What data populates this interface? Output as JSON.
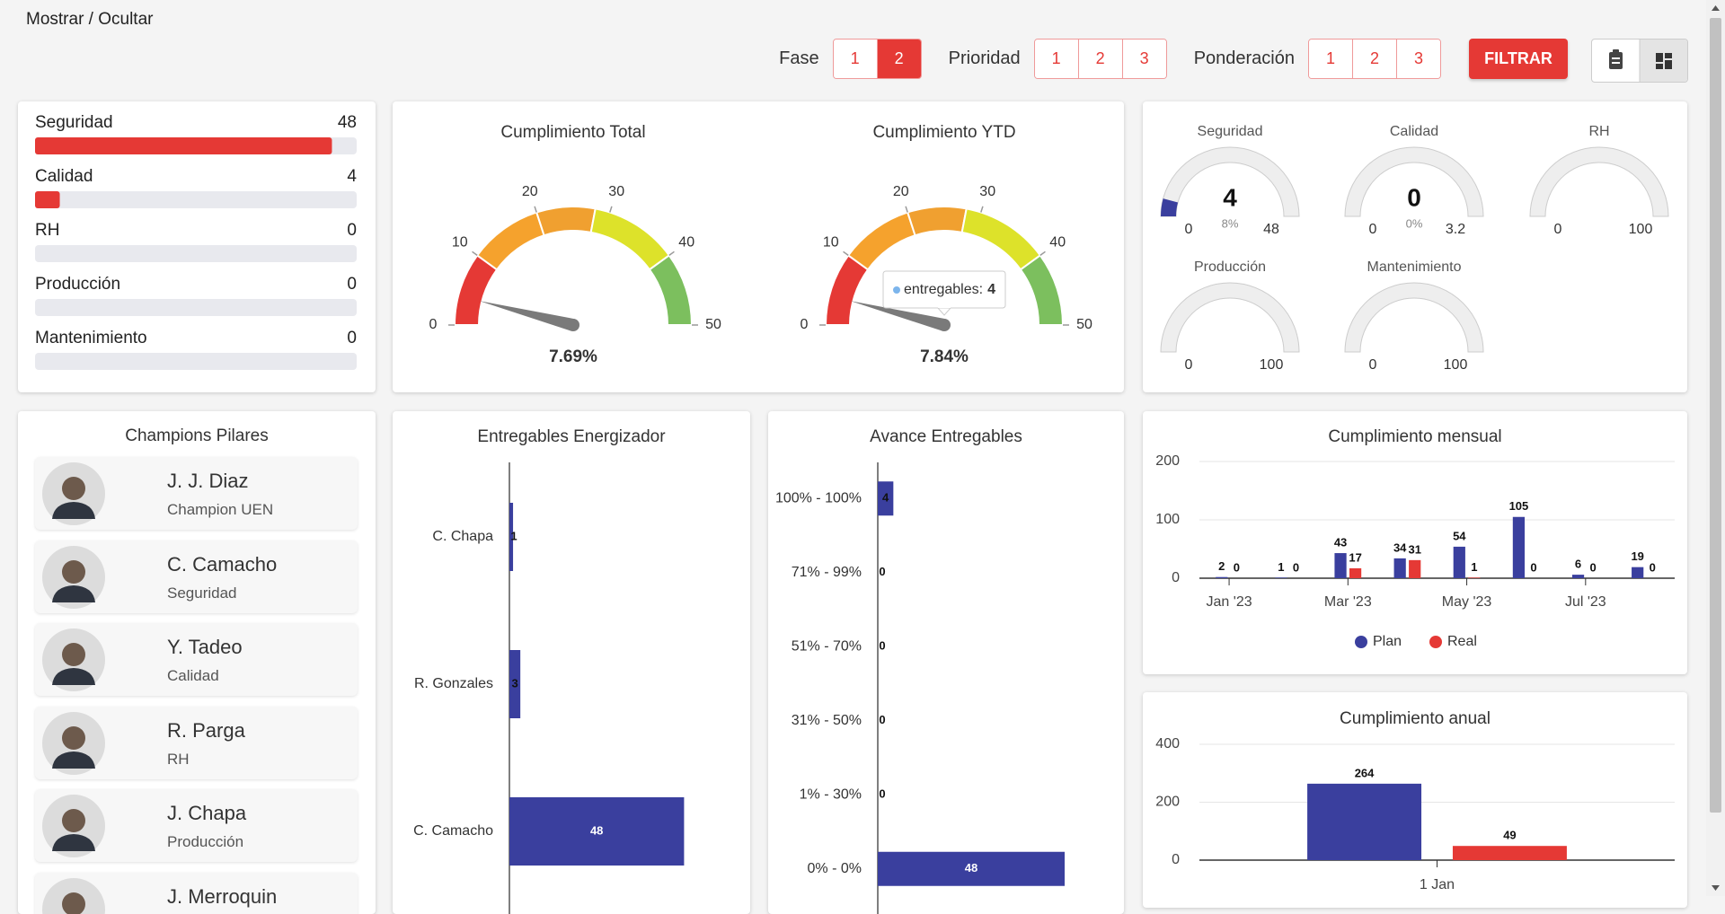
{
  "header": {
    "toggle": "Mostrar / Ocultar"
  },
  "filters": [
    {
      "label": "Fase",
      "options": [
        1,
        2
      ],
      "selected": 2
    },
    {
      "label": "Prioridad",
      "options": [
        1,
        2,
        3
      ]
    },
    {
      "label": "Ponderación",
      "options": [
        1,
        2,
        3
      ]
    }
  ],
  "filter_button": "FILTRAR",
  "champions": {
    "title": "Champions Pilares",
    "people": [
      {
        "name": "J. J. Diaz",
        "role": "Champion UEN"
      },
      {
        "name": "C. Camacho",
        "role": "Seguridad"
      },
      {
        "name": "Y. Tadeo",
        "role": "Calidad"
      },
      {
        "name": "R. Parga",
        "role": "RH"
      },
      {
        "name": "J. Chapa",
        "role": "Producción"
      },
      {
        "name": "J. Merroquin"
      }
    ]
  },
  "chart_data": [
    {
      "type": "progress",
      "categories": [
        "Seguridad",
        "Calidad",
        "RH",
        "Producción",
        "Mantenimiento"
      ],
      "values": [
        48,
        4,
        0,
        0,
        0
      ],
      "xlim": [
        0,
        52
      ],
      "color": "#e53935",
      "track_color": "#e8e9ee"
    },
    {
      "type": "gauge",
      "title": "Cumplimiento Total",
      "value": 4,
      "caption": "7.69%",
      "ylim": [
        0,
        50
      ],
      "yticks": [
        0,
        10,
        20,
        30,
        40,
        50
      ],
      "needle_color": "#7a7a7a",
      "bands": [
        {
          "from": 0,
          "to": 10,
          "color": "#e53935"
        },
        {
          "from": 10,
          "to": 20,
          "color": "#f5a22d"
        },
        {
          "from": 20,
          "to": 28,
          "color": "#f0a030"
        },
        {
          "from": 28,
          "to": 40,
          "color": "#dde22a"
        },
        {
          "from": 40,
          "to": 50,
          "color": "#7cbf5e"
        }
      ]
    },
    {
      "type": "gauge",
      "title": "Cumplimiento YTD",
      "value": 4,
      "caption": "7.84%",
      "ylim": [
        0,
        50
      ],
      "yticks": [
        0,
        10,
        20,
        30,
        40,
        50
      ],
      "needle_color": "#7a7a7a",
      "tooltip": "entregables:",
      "bands": [
        {
          "from": 0,
          "to": 10,
          "color": "#e53935"
        },
        {
          "from": 10,
          "to": 20,
          "color": "#f5a22d"
        },
        {
          "from": 20,
          "to": 28,
          "color": "#f0a030"
        },
        {
          "from": 28,
          "to": 40,
          "color": "#dde22a"
        },
        {
          "from": 40,
          "to": 50,
          "color": "#7cbf5e"
        }
      ]
    },
    {
      "type": "solidgauge",
      "color": "#3a3f9e",
      "track_color": "#eeeeee",
      "gauges": [
        {
          "title": "Seguridad",
          "value": 4,
          "caption": "8%",
          "ylim": [
            0,
            48
          ]
        },
        {
          "title": "Calidad",
          "value": 0,
          "caption": "0%",
          "ylim": [
            0,
            3.2
          ]
        },
        {
          "title": "RH",
          "ylim": [
            0,
            100
          ]
        },
        {
          "title": "Producción",
          "ylim": [
            0,
            100
          ]
        },
        {
          "title": "Mantenimiento",
          "ylim": [
            0,
            100
          ]
        }
      ]
    },
    {
      "type": "hbar",
      "title": "Entregables Energizador",
      "categories": [
        "C. Chapa",
        "R. Gonzales",
        "C. Camacho"
      ],
      "values": [
        1,
        3,
        48
      ],
      "xlim": [
        0,
        60
      ],
      "color": "#3a3f9e"
    },
    {
      "type": "hbar",
      "title": "Avance Entregables",
      "categories": [
        "100% - 100%",
        "71% - 99%",
        "51% - 70%",
        "31% - 50%",
        "1% - 30%",
        "0% - 0%"
      ],
      "values": [
        4,
        0,
        0,
        0,
        0,
        48
      ],
      "xlim": [
        0,
        60
      ],
      "color": "#3a3f9e"
    },
    {
      "type": "bar",
      "title": "Cumplimiento mensual",
      "categories": [
        "Jan '23",
        null,
        "Mar '23",
        null,
        "May '23",
        null,
        "Jul '23",
        null
      ],
      "series": [
        {
          "name": "Plan",
          "color": "#3a3f9e",
          "values": [
            2,
            1,
            43,
            34,
            54,
            105,
            6,
            19
          ]
        },
        {
          "name": "Real",
          "color": "#e53935",
          "values": [
            0,
            0,
            17,
            31,
            1,
            0,
            0,
            0
          ]
        }
      ],
      "ylim": [
        0,
        200
      ],
      "yticks": [
        0,
        100,
        200
      ],
      "grid": true,
      "legend": "bottom"
    },
    {
      "type": "bar",
      "title": "Cumplimiento anual",
      "categories": [
        "1 Jan"
      ],
      "series": [
        {
          "color": "#3a3f9e",
          "values": [
            264
          ]
        },
        {
          "color": "#e53935",
          "values": [
            49
          ]
        }
      ],
      "ylim": [
        0,
        400
      ],
      "yticks": [
        0,
        200,
        400
      ],
      "grid": true
    }
  ]
}
